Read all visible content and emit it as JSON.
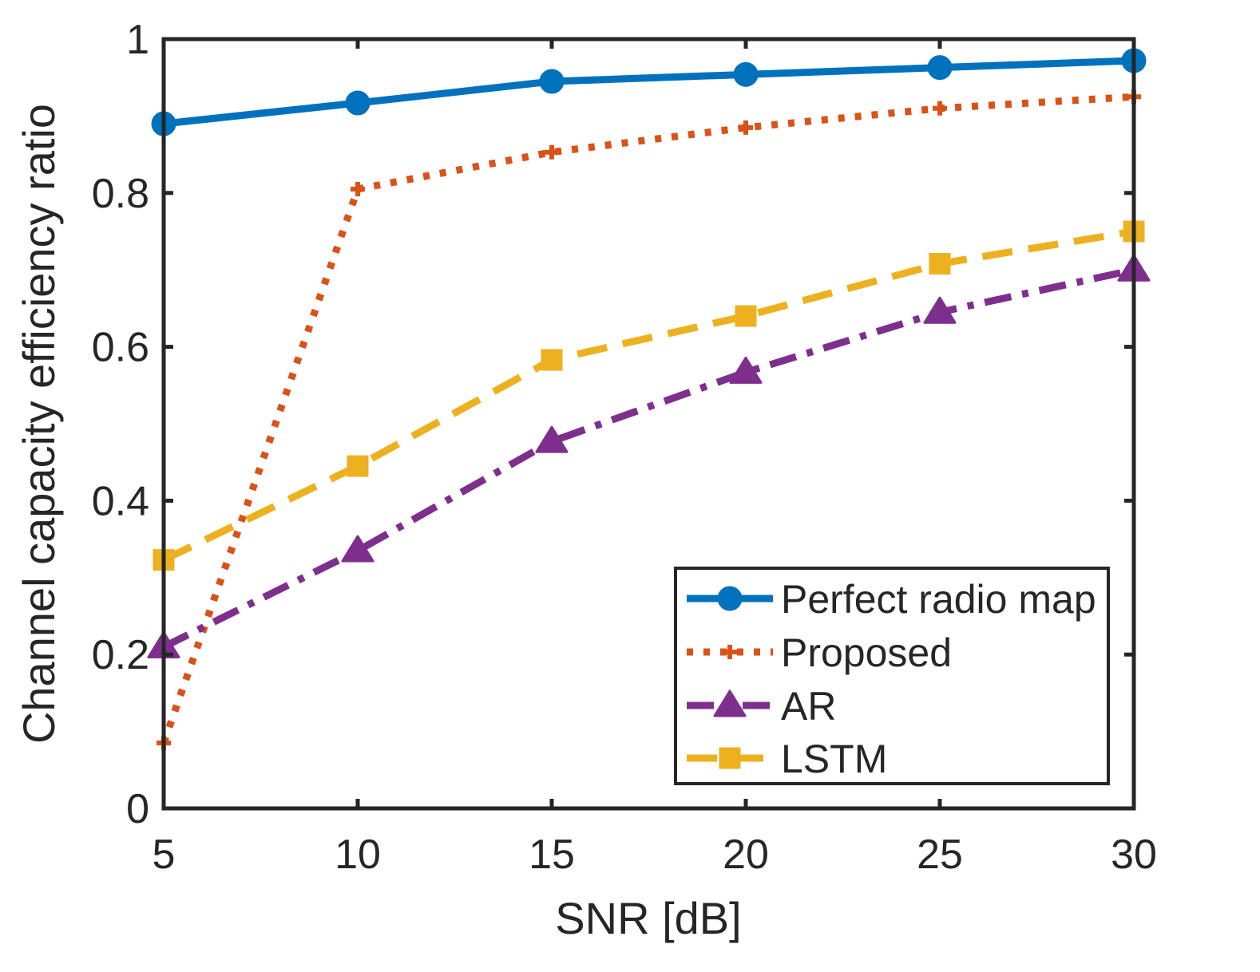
{
  "chart_data": {
    "type": "line",
    "title": "",
    "xlabel": "SNR [dB]",
    "ylabel": "Channel capacity efficiency ratio",
    "x": [
      5,
      10,
      15,
      20,
      25,
      30
    ],
    "xlim": [
      5,
      30
    ],
    "ylim": [
      0,
      1
    ],
    "xticks": [
      5,
      10,
      15,
      20,
      25,
      30
    ],
    "yticks": [
      0,
      0.2,
      0.4,
      0.6,
      0.8,
      1
    ],
    "xtick_labels": [
      "5",
      "10",
      "15",
      "20",
      "25",
      "30"
    ],
    "ytick_labels": [
      "0",
      "0.2",
      "0.4",
      "0.6",
      "0.8",
      "1"
    ],
    "grid": false,
    "legend_position": "bottom-right",
    "series": [
      {
        "name": "Perfect radio map",
        "values": [
          0.89,
          0.917,
          0.945,
          0.954,
          0.963,
          0.972
        ],
        "color": "#0072BD",
        "line_style": "solid",
        "marker": "circle"
      },
      {
        "name": "Proposed",
        "values": [
          0.085,
          0.805,
          0.853,
          0.885,
          0.91,
          0.925
        ],
        "color": "#D95319",
        "line_style": "dotted",
        "marker": "plus"
      },
      {
        "name": "AR",
        "values": [
          0.21,
          0.335,
          0.477,
          0.567,
          0.645,
          0.7
        ],
        "color": "#7E2F8E",
        "line_style": "dash-dot",
        "marker": "triangle"
      },
      {
        "name": "LSTM",
        "values": [
          0.323,
          0.445,
          0.583,
          0.64,
          0.708,
          0.75
        ],
        "color": "#EDB120",
        "line_style": "dashed",
        "marker": "square"
      }
    ]
  }
}
